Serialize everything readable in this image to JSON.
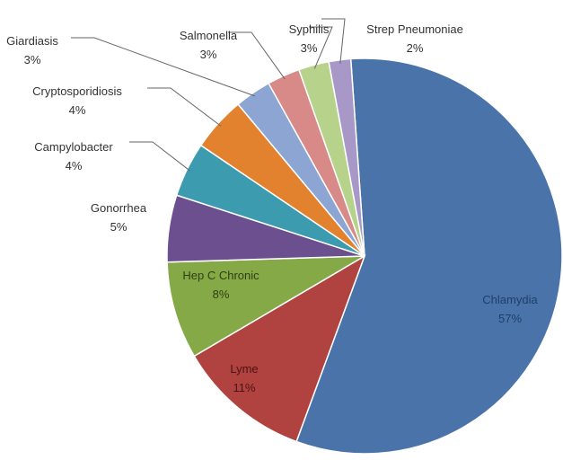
{
  "chart_data": {
    "type": "pie",
    "title": "",
    "slices": [
      {
        "label": "Chlamydia",
        "pct_text": "57%",
        "value": 57,
        "color": "#4a73aa",
        "text_color": "#1f3f6a"
      },
      {
        "label": "Lyme",
        "pct_text": "11%",
        "value": 11,
        "color": "#b0423f",
        "text_color": "#4a1414"
      },
      {
        "label": "Hep C Chronic",
        "pct_text": "8%",
        "value": 8,
        "color": "#86a948",
        "text_color": "#2f3f10"
      },
      {
        "label": "Gonorrhea",
        "pct_text": "5%",
        "value": 5.5,
        "color": "#6b4f8f",
        "text_color": "#333333"
      },
      {
        "label": "Campylobacter",
        "pct_text": "4%",
        "value": 4.5,
        "color": "#3d9bb0",
        "text_color": "#333333"
      },
      {
        "label": "Cryptosporidiosis",
        "pct_text": "4%",
        "value": 4.5,
        "color": "#e2822f",
        "text_color": "#333333"
      },
      {
        "label": "Giardiasis",
        "pct_text": "3%",
        "value": 3,
        "color": "#8da5d2",
        "text_color": "#333333"
      },
      {
        "label": "Salmonella",
        "pct_text": "3%",
        "value": 2.7,
        "color": "#d88a88",
        "text_color": "#333333"
      },
      {
        "label": "Syphilis",
        "pct_text": "3%",
        "value": 2.5,
        "color": "#b7d38b",
        "text_color": "#333333"
      },
      {
        "label": "Strep Pneumoniae",
        "pct_text": "2%",
        "value": 1.8,
        "color": "#a798c8",
        "text_color": "#333333"
      }
    ],
    "legend": "none",
    "labels": "outside with leader lines for small slices"
  }
}
